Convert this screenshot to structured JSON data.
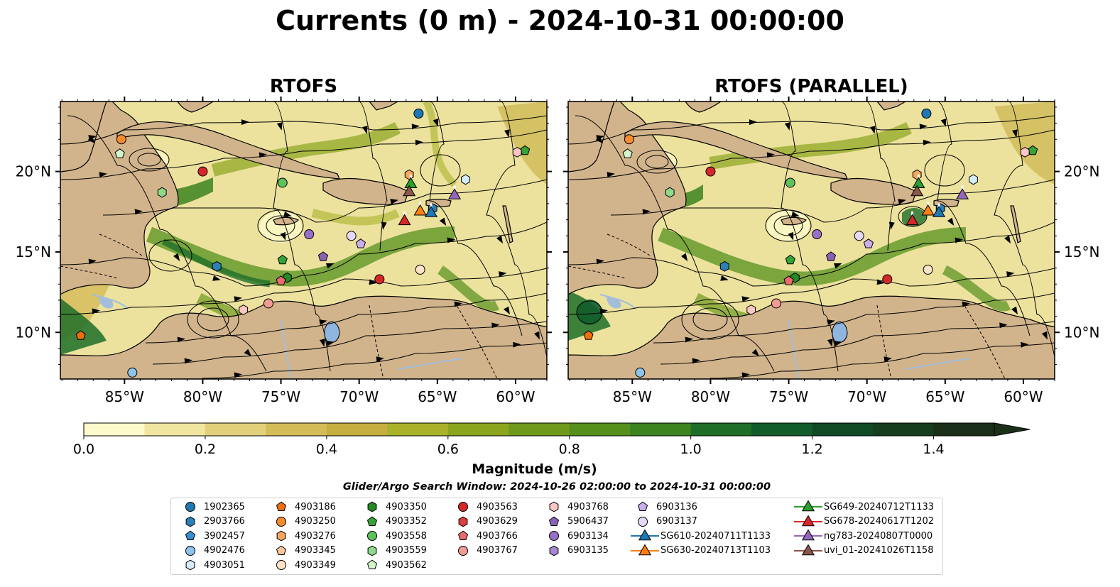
{
  "title": "Currents (0 m) - 2024-10-31 00:00:00",
  "panels": [
    {
      "title": "RTOFS"
    },
    {
      "title": "RTOFS (PARALLEL)"
    }
  ],
  "axes": {
    "lon_ticks": [
      "85°W",
      "80°W",
      "75°W",
      "70°W",
      "65°W",
      "60°W"
    ],
    "lat_ticks": [
      "20°N",
      "15°N",
      "10°N"
    ]
  },
  "colorbar": {
    "label": "Magnitude (m/s)",
    "ticks": [
      "0.0",
      "0.2",
      "0.4",
      "0.6",
      "0.8",
      "1.0",
      "1.2",
      "1.4"
    ],
    "range": [
      0.0,
      1.5
    ],
    "extend": "max",
    "colors": [
      "#fdfbcb",
      "#f0e6a0",
      "#e2d07a",
      "#d4bc58",
      "#c6ae40",
      "#aab22a",
      "#8ca51e",
      "#6f9a1c",
      "#55901c",
      "#3c821e",
      "#1f6e28",
      "#125c2c",
      "#0f4a25",
      "#163d1e",
      "#1b3018"
    ]
  },
  "search_window": "Glider/Argo Search Window: 2024-10-26 02:00:00 to 2024-10-31 00:00:00",
  "legend": [
    {
      "label": "1902365",
      "marker": "circle",
      "color": "#1f77b4"
    },
    {
      "label": "2903766",
      "marker": "hexagon",
      "color": "#2c7fb8"
    },
    {
      "label": "3902457",
      "marker": "pentagon",
      "color": "#3a8fd0"
    },
    {
      "label": "4902476",
      "marker": "circle",
      "color": "#8ec3ea"
    },
    {
      "label": "4903051",
      "marker": "hexagon",
      "color": "#d5ecfb"
    },
    {
      "label": "4903186",
      "marker": "pentagon",
      "color": "#ee6e0c"
    },
    {
      "label": "4903250",
      "marker": "circle",
      "color": "#f58b2c"
    },
    {
      "label": "4903276",
      "marker": "hexagon",
      "color": "#f7a65b"
    },
    {
      "label": "4903345",
      "marker": "pentagon",
      "color": "#fbc79a"
    },
    {
      "label": "4903349",
      "marker": "circle",
      "color": "#fde3c7"
    },
    {
      "label": "4903350",
      "marker": "hexagon",
      "color": "#238b21"
    },
    {
      "label": "4903352",
      "marker": "pentagon",
      "color": "#35a335"
    },
    {
      "label": "4903558",
      "marker": "circle",
      "color": "#5fc25a"
    },
    {
      "label": "4903559",
      "marker": "hexagon",
      "color": "#90d98a"
    },
    {
      "label": "4903562",
      "marker": "pentagon",
      "color": "#d4f5cc"
    },
    {
      "label": "4903563",
      "marker": "circle",
      "color": "#d62728"
    },
    {
      "label": "4903629",
      "marker": "hexagon",
      "color": "#dd3e3e"
    },
    {
      "label": "4903766",
      "marker": "pentagon",
      "color": "#ea6b6b"
    },
    {
      "label": "4903767",
      "marker": "circle",
      "color": "#f29a96"
    },
    {
      "label": "4903768",
      "marker": "hexagon",
      "color": "#fbc7c4"
    },
    {
      "label": "5906437",
      "marker": "pentagon",
      "color": "#8a62b5"
    },
    {
      "label": "6903134",
      "marker": "circle",
      "color": "#9a6fc9"
    },
    {
      "label": "6903135",
      "marker": "hexagon",
      "color": "#a886d3"
    },
    {
      "label": "6903136",
      "marker": "pentagon",
      "color": "#c8aeea"
    },
    {
      "label": "6903137",
      "marker": "circle",
      "color": "#e6d9f7"
    },
    {
      "label": "SG610-20240711T1133",
      "marker": "triangle",
      "color": "#1f77b4"
    },
    {
      "label": "SG630-20240713T1103",
      "marker": "triangle",
      "color": "#ff7f0e"
    },
    {
      "label": "SG649-20240712T1133",
      "marker": "triangle",
      "color": "#2ca02c"
    },
    {
      "label": "SG678-20240617T1202",
      "marker": "triangle",
      "color": "#d62728"
    },
    {
      "label": "ng783-20240807T0000",
      "marker": "triangle",
      "color": "#9467bd"
    },
    {
      "label": "uvi_01-20241026T1158",
      "marker": "triangle",
      "color": "#8c564b"
    }
  ],
  "floats": [
    {
      "id": "1902365",
      "lon": -66.2,
      "lat": 23.6
    },
    {
      "id": "4903250",
      "lon": -85.2,
      "lat": 22.0
    },
    {
      "id": "4903562",
      "lon": -85.3,
      "lat": 21.1
    },
    {
      "id": "4903563",
      "lon": -80.0,
      "lat": 20.0
    },
    {
      "id": "4903559",
      "lon": -82.6,
      "lat": 18.7
    },
    {
      "id": "4903558",
      "lon": -74.9,
      "lat": 19.3
    },
    {
      "id": "4903276",
      "lon": -66.8,
      "lat": 19.8
    },
    {
      "id": "4903051",
      "lon": -63.2,
      "lat": 19.5
    },
    {
      "id": "4903352",
      "lon": -59.4,
      "lat": 21.3
    },
    {
      "id": "4903768",
      "lon": -59.9,
      "lat": 21.2
    },
    {
      "id": "2903766",
      "lon": -65.3,
      "lat": 17.7
    },
    {
      "id": "6903134",
      "lon": -73.2,
      "lat": 16.1
    },
    {
      "id": "6903137",
      "lon": -70.5,
      "lat": 16.0
    },
    {
      "id": "6903136",
      "lon": -69.9,
      "lat": 15.5
    },
    {
      "id": "5906437",
      "lon": -72.3,
      "lat": 14.7
    },
    {
      "id": "2903766",
      "lon": -79.1,
      "lat": 14.1
    },
    {
      "id": "4903352",
      "lon": -74.9,
      "lat": 14.5
    },
    {
      "id": "4903350",
      "lon": -74.6,
      "lat": 13.4
    },
    {
      "id": "4903766",
      "lon": -75.0,
      "lat": 13.2
    },
    {
      "id": "4903563",
      "lon": -68.7,
      "lat": 13.3
    },
    {
      "id": "4903349",
      "lon": -66.1,
      "lat": 13.9
    },
    {
      "id": "4903767",
      "lon": -75.8,
      "lat": 11.8
    },
    {
      "id": "4903768",
      "lon": -77.4,
      "lat": 11.4
    },
    {
      "id": "4903186",
      "lon": -87.8,
      "lat": 9.8
    },
    {
      "id": "4902476",
      "lon": -84.5,
      "lat": 7.5
    }
  ],
  "gliders": [
    {
      "id": "SG649-20240712T1133",
      "lon": -66.7,
      "lat": 19.2
    },
    {
      "id": "uvi_01-20241026T1158",
      "lon": -66.8,
      "lat": 18.7
    },
    {
      "id": "ng783-20240807T0000",
      "lon": -63.9,
      "lat": 18.5
    },
    {
      "id": "SG630-20240713T1103",
      "lon": -66.1,
      "lat": 17.5
    },
    {
      "id": "SG610-20240711T1133",
      "lon": -65.4,
      "lat": 17.4
    },
    {
      "id": "SG678-20240617T1202",
      "lon": -67.1,
      "lat": 16.9
    }
  ]
}
